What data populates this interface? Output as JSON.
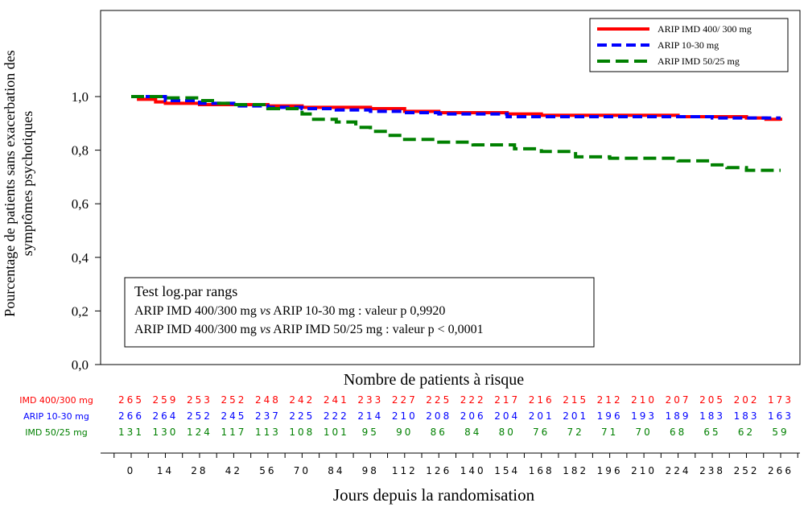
{
  "chart_data": {
    "type": "line",
    "title": "",
    "ylabel_lines": [
      "Pourcentage de patients sans exacerbation des",
      "symptômes psychotiques"
    ],
    "xlabel": "Jours depuis la randomisation",
    "ylim": [
      0,
      1.0
    ],
    "yticks": [
      "0,0",
      "0,2",
      "0,4",
      "0,6",
      "0,8",
      "1,0"
    ],
    "ytick_values": [
      0,
      0.2,
      0.4,
      0.6,
      0.8,
      1.0
    ],
    "xlim": [
      0,
      266
    ],
    "xticks": [
      0,
      14,
      28,
      42,
      56,
      70,
      84,
      98,
      112,
      126,
      140,
      154,
      168,
      182,
      196,
      210,
      224,
      238,
      252,
      266
    ],
    "legend_position": "top-right",
    "series": [
      {
        "name": "ARIP IMD 400/ 300 mg",
        "color": "#ff0000",
        "dash": "solid",
        "x": [
          0,
          3,
          10,
          14,
          28,
          56,
          70,
          98,
          112,
          126,
          154,
          168,
          196,
          224,
          238,
          252,
          260,
          266
        ],
        "y": [
          1.0,
          0.99,
          0.98,
          0.975,
          0.97,
          0.965,
          0.96,
          0.955,
          0.945,
          0.94,
          0.935,
          0.93,
          0.93,
          0.925,
          0.925,
          0.92,
          0.915,
          0.91
        ]
      },
      {
        "name": "ARIP 10-30 mg",
        "color": "#0000ff",
        "dash": "dashed",
        "x": [
          0,
          14,
          28,
          42,
          56,
          70,
          84,
          98,
          112,
          126,
          140,
          154,
          168,
          196,
          224,
          238,
          252,
          266
        ],
        "y": [
          1.0,
          0.985,
          0.975,
          0.965,
          0.96,
          0.955,
          0.95,
          0.945,
          0.94,
          0.935,
          0.935,
          0.925,
          0.925,
          0.925,
          0.925,
          0.92,
          0.92,
          0.92
        ]
      },
      {
        "name": "ARIP IMD 50/25 mg",
        "color": "#008000",
        "dash": "dashed",
        "x": [
          0,
          14,
          28,
          35,
          42,
          56,
          70,
          74,
          84,
          92,
          98,
          105,
          112,
          126,
          140,
          154,
          157,
          168,
          182,
          196,
          210,
          224,
          238,
          244,
          252,
          266
        ],
        "y": [
          1.0,
          0.995,
          0.985,
          0.975,
          0.97,
          0.955,
          0.935,
          0.915,
          0.905,
          0.885,
          0.87,
          0.855,
          0.84,
          0.83,
          0.82,
          0.82,
          0.805,
          0.795,
          0.775,
          0.77,
          0.77,
          0.76,
          0.745,
          0.735,
          0.725,
          0.725
        ]
      }
    ],
    "stats_box": {
      "title": "Test log.par rangs",
      "line1_a": "ARIP IMD 400/300 mg ",
      "line1_vs": "vs",
      "line1_b": " ARIP 10-30 mg : valeur p 0,9920",
      "line2_a": "ARIP IMD 400/300 mg ",
      "line2_vs": "vs",
      "line2_b": " ARIP IMD 50/25 mg : valeur p < 0,0001"
    },
    "risk_table": {
      "title": "Nombre de patients à risque",
      "rows": [
        {
          "label": "IMD 400/300 mg",
          "color": "#ff0000",
          "values": [
            265,
            259,
            253,
            252,
            248,
            242,
            241,
            233,
            227,
            225,
            222,
            217,
            216,
            215,
            212,
            210,
            207,
            205,
            202,
            173
          ]
        },
        {
          "label": "ARIP 10-30 mg",
          "color": "#0000ff",
          "values": [
            266,
            264,
            252,
            245,
            237,
            225,
            222,
            214,
            210,
            208,
            206,
            204,
            201,
            201,
            196,
            193,
            189,
            183,
            183,
            163
          ]
        },
        {
          "label": "IMD 50/25 mg",
          "color": "#008000",
          "values": [
            131,
            130,
            124,
            117,
            113,
            108,
            101,
            95,
            90,
            86,
            84,
            80,
            76,
            72,
            71,
            70,
            68,
            65,
            62,
            59
          ]
        }
      ]
    }
  }
}
